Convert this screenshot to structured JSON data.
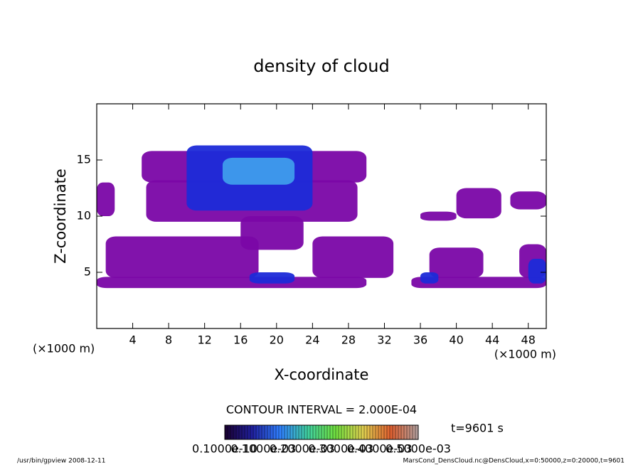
{
  "chart_data": {
    "type": "contour",
    "title": "density of cloud",
    "xlabel": "X-coordinate",
    "ylabel": "Z-coordinate",
    "xunit": "(×1000 m)",
    "yunit": "(×1000 m)",
    "xlim": [
      0,
      50
    ],
    "ylim": [
      0,
      20
    ],
    "xticks": [
      4,
      8,
      12,
      16,
      20,
      24,
      28,
      32,
      36,
      40,
      44,
      48
    ],
    "yticks": [
      5,
      10,
      15
    ],
    "level_colors": [
      "#7a06a6",
      "#1c2ad8",
      "#3f9cec"
    ],
    "clouds": [
      {
        "x": [
          0,
          30
        ],
        "z": [
          3.6,
          4.6
        ],
        "level": 0
      },
      {
        "x": [
          35,
          50
        ],
        "z": [
          3.6,
          4.6
        ],
        "level": 0
      },
      {
        "x": [
          5,
          30
        ],
        "z": [
          13,
          15.8
        ],
        "level": 0
      },
      {
        "x": [
          5.5,
          29
        ],
        "z": [
          9.5,
          13.2
        ],
        "level": 0
      },
      {
        "x": [
          0,
          2
        ],
        "z": [
          10,
          13
        ],
        "level": 0
      },
      {
        "x": [
          16,
          23
        ],
        "z": [
          7,
          10
        ],
        "level": 0
      },
      {
        "x": [
          1,
          18
        ],
        "z": [
          4.5,
          8.2
        ],
        "level": 0
      },
      {
        "x": [
          24,
          33
        ],
        "z": [
          4.5,
          8.2
        ],
        "level": 0
      },
      {
        "x": [
          37,
          43
        ],
        "z": [
          4.5,
          7.2
        ],
        "level": 0
      },
      {
        "x": [
          40,
          45
        ],
        "z": [
          9.8,
          12.5
        ],
        "level": 0
      },
      {
        "x": [
          46,
          50
        ],
        "z": [
          10.6,
          12.2
        ],
        "level": 0
      },
      {
        "x": [
          36,
          40
        ],
        "z": [
          9.6,
          10.4
        ],
        "level": 0
      },
      {
        "x": [
          47,
          50
        ],
        "z": [
          4.5,
          7.5
        ],
        "level": 0
      },
      {
        "x": [
          10,
          24
        ],
        "z": [
          10.5,
          16.3
        ],
        "level": 1
      },
      {
        "x": [
          14,
          22
        ],
        "z": [
          12.8,
          15.2
        ],
        "level": 2
      },
      {
        "x": [
          17,
          22
        ],
        "z": [
          4,
          5
        ],
        "level": 1
      },
      {
        "x": [
          36,
          38
        ],
        "z": [
          4,
          5
        ],
        "level": 1
      },
      {
        "x": [
          48,
          50
        ],
        "z": [
          4,
          6.2
        ],
        "level": 1
      }
    ],
    "contour_interval": "CONTOUR INTERVAL = 2.000E-04",
    "time_label": "t=9601 s",
    "colorbar_colors": [
      "#1a0030",
      "#2020a0",
      "#3080ff",
      "#40d0a0",
      "#70e040",
      "#e0d050",
      "#e06030",
      "#b0a0a0"
    ],
    "colorbar_labels": [
      "0.1000e-10",
      "0.1000e-03",
      "0.2000e-03",
      "0.3000e-03",
      "0.4000e-03",
      "0.5000e-03"
    ],
    "footer_left": "/usr/bin/gpview  2008-12-11",
    "footer_right": "MarsCond_DensCloud.nc@DensCloud,x=0:50000,z=0:20000,t=9601"
  }
}
